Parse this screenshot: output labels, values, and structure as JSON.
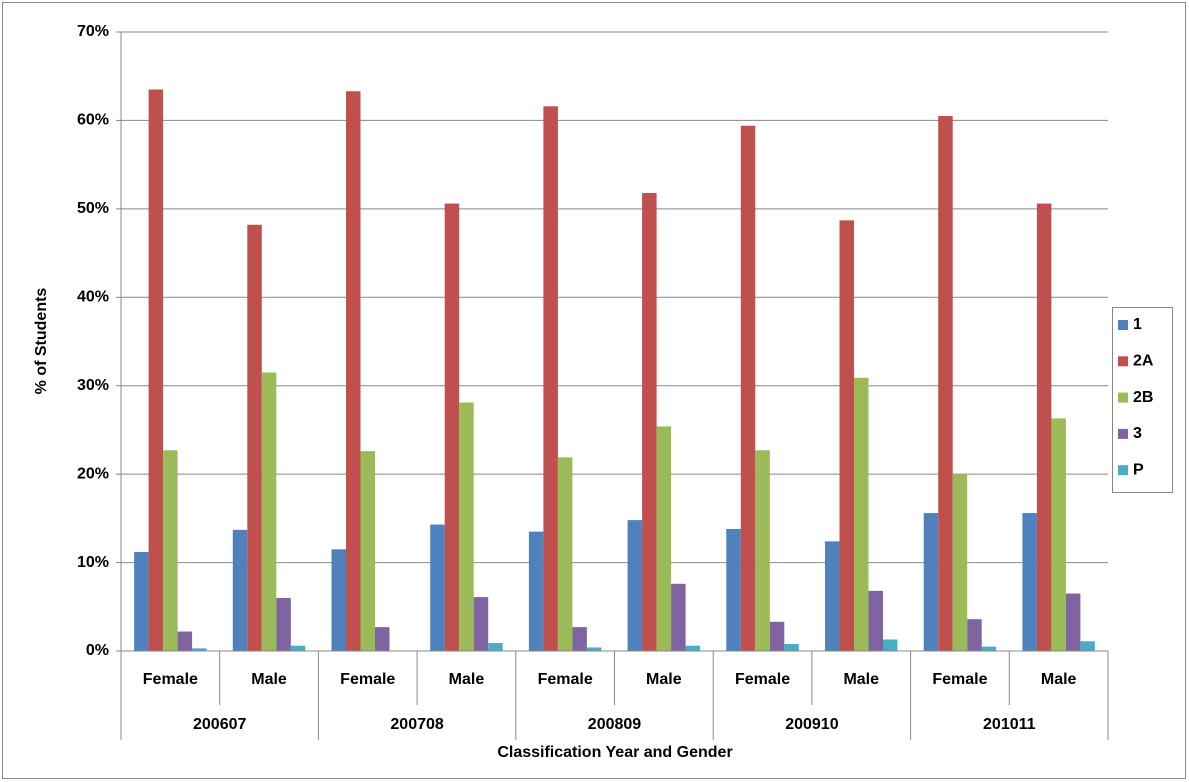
{
  "chart_data": {
    "type": "bar",
    "y_label": "% of Students",
    "x_label": "Classification Year and Gender",
    "categories": [
      "Female",
      "Male",
      "Female",
      "Male",
      "Female",
      "Male",
      "Female",
      "Male",
      "Female",
      "Male"
    ],
    "category_groups": [
      "200607",
      "200708",
      "200809",
      "200910",
      "201011"
    ],
    "series": [
      {
        "name": "1",
        "color": "#4f81bd",
        "values": [
          11.2,
          13.7,
          11.5,
          14.3,
          13.5,
          14.8,
          13.8,
          12.4,
          15.6,
          15.6
        ]
      },
      {
        "name": "2A",
        "color": "#c0504d",
        "values": [
          63.5,
          48.2,
          63.3,
          50.6,
          61.6,
          51.8,
          59.4,
          48.7,
          60.5,
          50.6
        ]
      },
      {
        "name": "2B",
        "color": "#9bbb59",
        "values": [
          22.7,
          31.5,
          22.6,
          28.1,
          21.9,
          25.4,
          22.7,
          30.9,
          20.0,
          26.3
        ]
      },
      {
        "name": "3",
        "color": "#8064a2",
        "values": [
          2.2,
          6.0,
          2.7,
          6.1,
          2.7,
          7.6,
          3.3,
          6.8,
          3.6,
          6.5
        ]
      },
      {
        "name": "P",
        "color": "#4bacc6",
        "values": [
          0.3,
          0.6,
          0,
          0.9,
          0.4,
          0.6,
          0.8,
          1.3,
          0.5,
          1.1
        ]
      }
    ],
    "ylim": [
      0,
      70
    ],
    "yticks": [
      {
        "value": 0,
        "label": "0%"
      },
      {
        "value": 10,
        "label": "10%"
      },
      {
        "value": 20,
        "label": "20%"
      },
      {
        "value": 30,
        "label": "30%"
      },
      {
        "value": 40,
        "label": "40%"
      },
      {
        "value": 50,
        "label": "50%"
      },
      {
        "value": 60,
        "label": "60%"
      },
      {
        "value": 70,
        "label": "70%"
      }
    ],
    "grid": true,
    "legend": "right"
  }
}
